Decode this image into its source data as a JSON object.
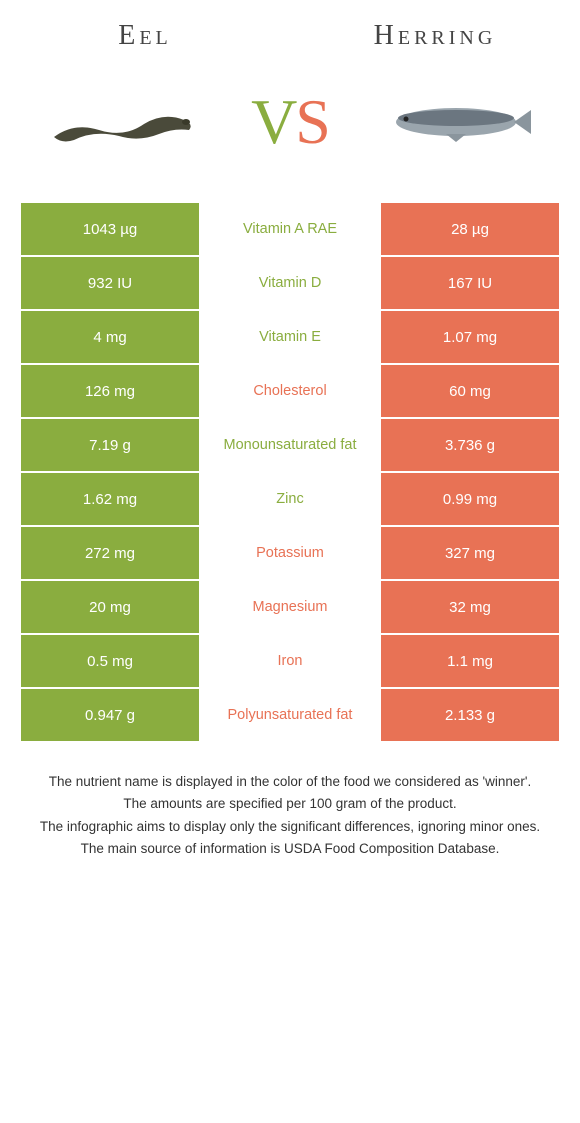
{
  "header": {
    "left_title": "Eel",
    "right_title": "Herring",
    "vs_v": "V",
    "vs_s": "S"
  },
  "colors": {
    "left_bg": "#8aad3f",
    "right_bg": "#e87255",
    "left_text": "#ffffff",
    "right_text": "#ffffff",
    "green": "#8aad3f",
    "orange": "#e87255"
  },
  "rows": [
    {
      "left": "1043 µg",
      "label": "Vitamin A RAE",
      "label_color": "#8aad3f",
      "right": "28 µg"
    },
    {
      "left": "932 IU",
      "label": "Vitamin D",
      "label_color": "#8aad3f",
      "right": "167 IU"
    },
    {
      "left": "4 mg",
      "label": "Vitamin E",
      "label_color": "#8aad3f",
      "right": "1.07 mg"
    },
    {
      "left": "126 mg",
      "label": "Cholesterol",
      "label_color": "#e87255",
      "right": "60 mg"
    },
    {
      "left": "7.19 g",
      "label": "Monounsaturated fat",
      "label_color": "#8aad3f",
      "right": "3.736 g"
    },
    {
      "left": "1.62 mg",
      "label": "Zinc",
      "label_color": "#8aad3f",
      "right": "0.99 mg"
    },
    {
      "left": "272 mg",
      "label": "Potassium",
      "label_color": "#e87255",
      "right": "327 mg"
    },
    {
      "left": "20 mg",
      "label": "Magnesium",
      "label_color": "#e87255",
      "right": "32 mg"
    },
    {
      "left": "0.5 mg",
      "label": "Iron",
      "label_color": "#e87255",
      "right": "1.1 mg"
    },
    {
      "left": "0.947 g",
      "label": "Polyunsaturated fat",
      "label_color": "#e87255",
      "right": "2.133 g"
    }
  ],
  "footer": {
    "line1": "The nutrient name is displayed in the color of the food we considered as 'winner'.",
    "line2": "The amounts are specified per 100 gram of the product.",
    "line3": "The infographic aims to display only the significant differences, ignoring minor ones.",
    "line4": "The main source of information is USDA Food Composition Database."
  }
}
